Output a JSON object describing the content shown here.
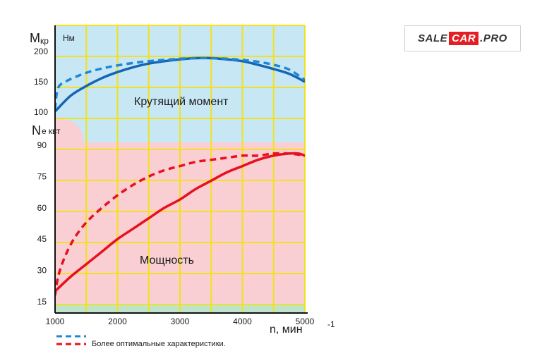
{
  "logo": {
    "part1": "SALE",
    "part2": "CAR",
    "part3": ".PRO"
  },
  "chart_data": {
    "type": "line",
    "x_axis": {
      "label": "n, мин",
      "exponent": "-1",
      "range": [
        1000,
        5000
      ],
      "ticks": [
        1000,
        2000,
        3000,
        4000,
        5000
      ]
    },
    "torque_axis": {
      "symbol": "M",
      "subscript": "кр",
      "unit": "Нм",
      "range": [
        100,
        200
      ],
      "ticks": [
        100,
        150,
        200
      ]
    },
    "power_axis": {
      "symbol": "N",
      "subscript": "e",
      "unit": "квт",
      "range": [
        10,
        95
      ],
      "ticks": [
        15,
        30,
        45,
        60,
        75,
        90
      ]
    },
    "grid": true,
    "regions": [
      {
        "name": "Крутящий момент",
        "color": "#c8e7f5"
      },
      {
        "name": "Мощность",
        "color": "#f9cfd3"
      }
    ],
    "series": [
      {
        "region": "Крутящий момент",
        "style": "solid",
        "color": "#1565b5",
        "x": [
          1000,
          1250,
          1500,
          1750,
          2000,
          2250,
          2500,
          2750,
          3000,
          3250,
          3500,
          3750,
          4000,
          4250,
          4500,
          4750,
          5000
        ],
        "y": [
          101,
          127,
          143,
          156,
          166,
          174,
          180,
          184,
          187,
          189,
          189,
          187,
          184,
          178,
          171,
          163,
          150
        ]
      },
      {
        "region": "Крутящий момент",
        "style": "dashed",
        "color": "#1e88d6",
        "x": [
          1000,
          1050,
          1200,
          1400,
          1600,
          1800,
          2000,
          2250,
          2500,
          2750,
          3000,
          3250,
          3500,
          3750,
          4000,
          4250,
          4500,
          4750,
          5000
        ],
        "y": [
          105,
          140,
          152,
          161,
          168,
          173,
          177,
          181,
          184,
          186,
          188,
          189,
          189,
          188,
          186,
          183,
          178,
          170,
          153
        ]
      },
      {
        "region": "Мощность",
        "style": "solid",
        "color": "#e8101e",
        "x": [
          1000,
          1250,
          1500,
          1750,
          2000,
          2250,
          2500,
          2750,
          3000,
          3250,
          3500,
          3750,
          4000,
          4250,
          4500,
          4750,
          4900,
          5000
        ],
        "y": [
          20,
          27,
          33,
          39,
          45,
          50,
          55,
          60,
          64,
          69,
          73,
          77,
          80,
          83,
          85,
          86,
          86,
          85
        ]
      },
      {
        "region": "Мощность",
        "style": "dashed",
        "color": "#e8101e",
        "x": [
          1000,
          1050,
          1150,
          1300,
          1500,
          1750,
          2000,
          2250,
          2500,
          2750,
          3000,
          3250,
          3500,
          3750,
          4000,
          4250,
          4500,
          4750,
          5000
        ],
        "y": [
          18,
          27,
          36,
          45,
          53,
          60,
          66,
          71,
          75,
          78,
          80,
          82,
          83,
          84,
          85,
          85,
          86,
          86,
          85
        ]
      }
    ],
    "annotations": [
      "Крутящий момент",
      "Мощность"
    ],
    "legend": {
      "text": "Более оптимальные характеристики.",
      "placement": "bottom-left"
    }
  }
}
